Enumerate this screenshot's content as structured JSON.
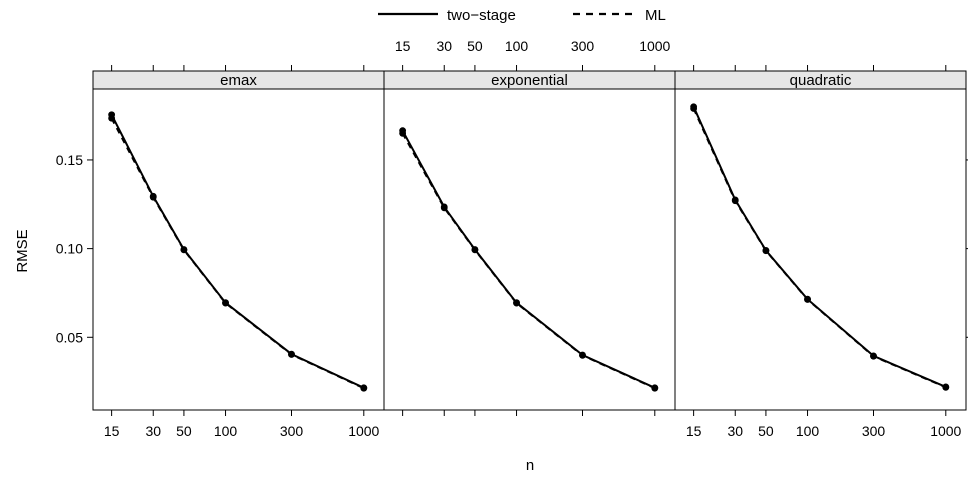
{
  "chart_data": {
    "type": "line",
    "title": "",
    "xlabel": "n",
    "ylabel": "RMSE",
    "x_scale": "log",
    "xlim": [
      11,
      1400
    ],
    "ylim": [
      0.009,
      0.19
    ],
    "x_ticks": [
      15,
      30,
      50,
      100,
      300,
      1000
    ],
    "x_tick_labels": [
      "15",
      "30",
      "50",
      "100",
      "300",
      "1000"
    ],
    "y_ticks": [
      0.05,
      0.1,
      0.15
    ],
    "y_tick_labels": [
      "0.05",
      "0.10",
      "0.15"
    ],
    "legend": {
      "position": "top",
      "items": [
        {
          "label": "two−stage",
          "line_style": "solid"
        },
        {
          "label": "ML",
          "line_style": "dashed"
        }
      ]
    },
    "panels": [
      {
        "name": "emax",
        "x": [
          15,
          30,
          50,
          100,
          300,
          1000
        ],
        "series": [
          {
            "name": "two−stage",
            "values": [
              0.1755,
              0.1295,
              0.0995,
              0.0695,
              0.0405,
              0.0215
            ]
          },
          {
            "name": "ML",
            "values": [
              0.1735,
              0.129,
              0.0993,
              0.0693,
              0.0403,
              0.0213
            ]
          }
        ]
      },
      {
        "name": "exponential",
        "x": [
          15,
          30,
          50,
          100,
          300,
          1000
        ],
        "series": [
          {
            "name": "two−stage",
            "values": [
              0.1665,
              0.1235,
              0.0995,
              0.0695,
              0.04,
              0.0215
            ]
          },
          {
            "name": "ML",
            "values": [
              0.165,
              0.123,
              0.0993,
              0.0693,
              0.0398,
              0.0213
            ]
          }
        ]
      },
      {
        "name": "quadratic",
        "x": [
          15,
          30,
          50,
          100,
          300,
          1000
        ],
        "series": [
          {
            "name": "two−stage",
            "values": [
              0.18,
              0.1275,
              0.099,
              0.0715,
              0.0395,
              0.022
            ]
          },
          {
            "name": "ML",
            "values": [
              0.179,
              0.127,
              0.0988,
              0.0713,
              0.0393,
              0.0218
            ]
          }
        ]
      }
    ],
    "colors": {
      "line": "#000000",
      "strip": "#e6e6e6",
      "frame": "#000000"
    }
  }
}
